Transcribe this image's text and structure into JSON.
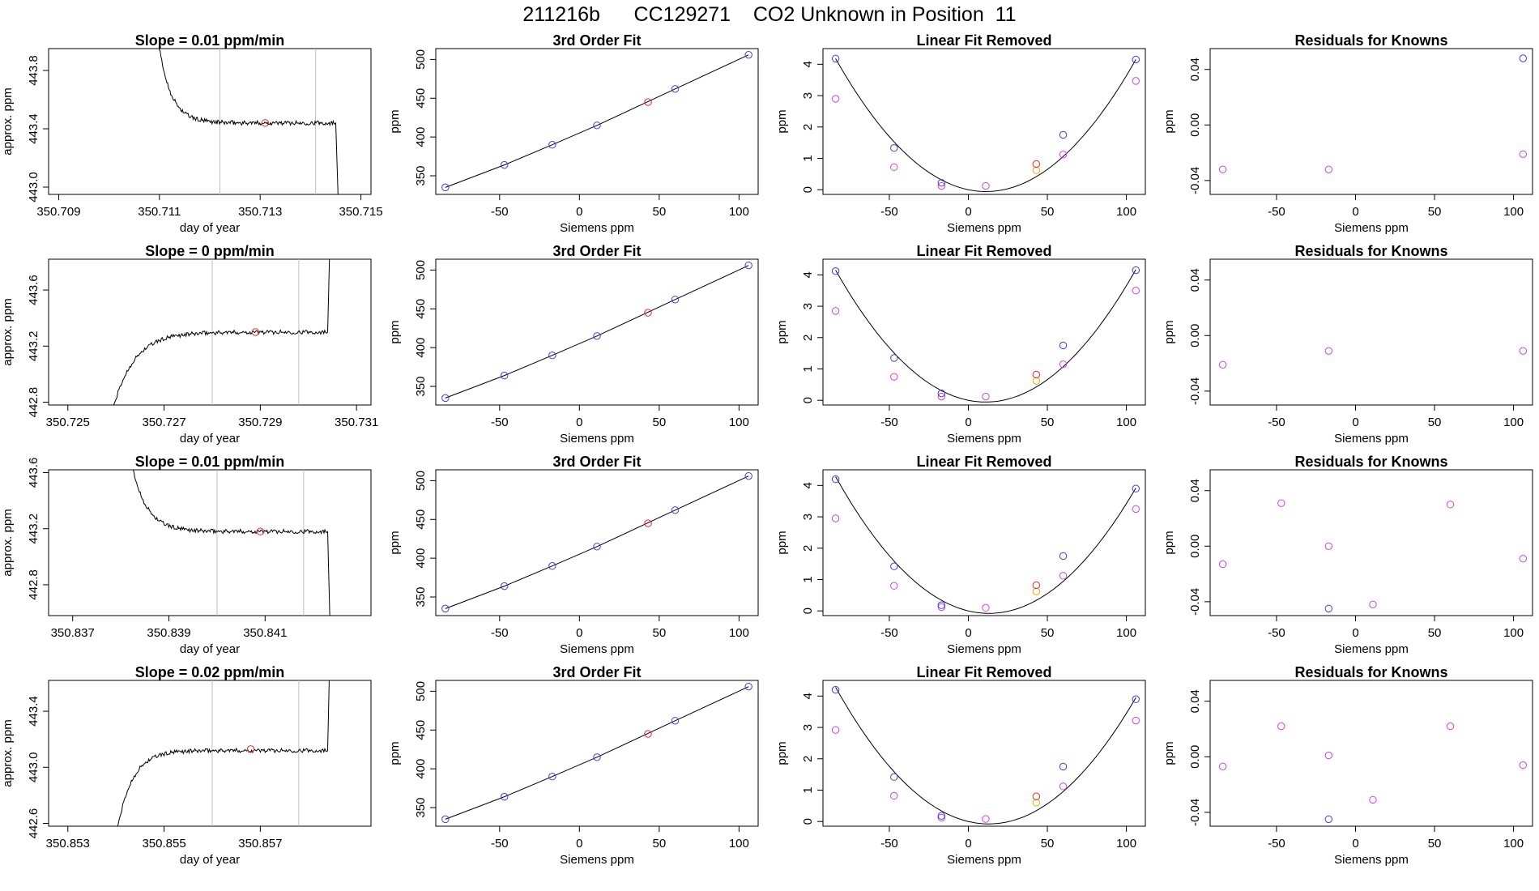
{
  "page_title": "211216b      CC129271    CO2 Unknown in Position  11",
  "colors": {
    "line": "#000000",
    "grid": "#bebebe",
    "red": "#e8292b",
    "blue": "#3a3af0",
    "magenta": "#d23ee8",
    "orange": "#ffa500"
  },
  "labels": {
    "slope_ylabel": "approx. ppm",
    "slope_xlabel": "day of year",
    "fit_title": "3rd Order Fit",
    "fit_ylabel": "ppm",
    "fit_xlabel": "Siemens ppm",
    "lin_title": "Linear Fit Removed",
    "lin_ylabel": "ppm",
    "lin_xlabel": "Siemens ppm",
    "res_title": "Residuals for Knowns",
    "res_ylabel": "ppm",
    "res_xlabel": "Siemens ppm"
  },
  "chart_data": [
    {
      "row": 1,
      "slope": {
        "type": "line",
        "title": "Slope =  0.01  ppm/min",
        "xlim": [
          350.7088,
          350.7152
        ],
        "ylim": [
          442.95,
          443.95
        ],
        "xticks": [
          350.709,
          350.711,
          350.713,
          350.715
        ],
        "yticks": [
          443.0,
          443.4,
          443.8
        ],
        "vlines": [
          350.7122,
          350.7141
        ],
        "shape": "decay_drop",
        "start_y": 444.2,
        "plateau_y": 443.44,
        "final_y": 442.9,
        "x_start": 350.7109,
        "x_settle": 350.7117,
        "x_end": 350.7145,
        "mean_point": [
          350.7131,
          443.44
        ]
      },
      "fit": {
        "type": "line",
        "title": "3rd Order Fit",
        "xlim": [
          -90,
          112
        ],
        "ylim": [
          326,
          514
        ],
        "xticks": [
          -50,
          0,
          50,
          100
        ],
        "yticks": [
          350,
          400,
          450,
          500
        ],
        "knowns": [
          [
            -84,
            335
          ],
          [
            -47,
            364
          ],
          [
            -17,
            390
          ],
          [
            11,
            415
          ],
          [
            60,
            462
          ],
          [
            106,
            506
          ]
        ],
        "unknown": [
          43,
          445
        ]
      },
      "linear": {
        "type": "scatter",
        "title": "Linear Fit Removed",
        "xlim": [
          -92,
          112
        ],
        "ylim": [
          -0.15,
          4.5
        ],
        "xticks": [
          -50,
          0,
          50,
          100
        ],
        "yticks": [
          0,
          1,
          2,
          3,
          4
        ],
        "curve": [
          [
            -84,
            4.18
          ],
          [
            106,
            4.15
          ]
        ],
        "blue": [
          [
            -84,
            4.18
          ],
          [
            -47,
            1.33
          ],
          [
            -17,
            0.22
          ],
          [
            60,
            1.75
          ],
          [
            106,
            4.15
          ]
        ],
        "magenta": [
          [
            -84,
            2.9
          ],
          [
            -47,
            0.72
          ],
          [
            -17,
            0.12
          ],
          [
            11,
            0.12
          ],
          [
            60,
            1.12
          ],
          [
            106,
            3.47
          ]
        ],
        "red": [
          [
            43,
            0.82
          ]
        ],
        "orange": [
          [
            43,
            0.62
          ]
        ]
      },
      "residuals": {
        "type": "scatter",
        "title": "Residuals for Knowns",
        "xlim": [
          -92,
          112
        ],
        "ylim": [
          -0.05,
          0.055
        ],
        "xticks": [
          -50,
          0,
          50,
          100
        ],
        "yticks": [
          -0.04,
          0.0,
          0.04
        ],
        "blue": [
          [
            106,
            0.048
          ]
        ],
        "magenta": [
          [
            -84,
            -0.032
          ],
          [
            -17,
            -0.032
          ],
          [
            106,
            -0.021
          ]
        ]
      }
    },
    {
      "row": 2,
      "slope": {
        "type": "line",
        "title": "Slope =  0  ppm/min",
        "xlim": [
          350.7246,
          350.7313
        ],
        "ylim": [
          442.78,
          443.82
        ],
        "xticks": [
          350.725,
          350.727,
          350.729,
          350.731
        ],
        "yticks": [
          442.8,
          443.2,
          443.6
        ],
        "vlines": [
          350.728,
          350.7298
        ],
        "shape": "rise_jump",
        "start_y": 442.7,
        "plateau_y": 443.3,
        "final_y": 444.0,
        "x_start": 350.7259,
        "x_settle": 350.7273,
        "x_end": 350.7304,
        "mean_point": [
          350.7289,
          443.3
        ]
      },
      "fit": {
        "type": "line",
        "title": "3rd Order Fit",
        "xlim": [
          -90,
          112
        ],
        "ylim": [
          326,
          514
        ],
        "xticks": [
          -50,
          0,
          50,
          100
        ],
        "yticks": [
          350,
          400,
          450,
          500
        ],
        "knowns": [
          [
            -84,
            335
          ],
          [
            -47,
            364
          ],
          [
            -17,
            390
          ],
          [
            11,
            415
          ],
          [
            60,
            462
          ],
          [
            106,
            506
          ]
        ],
        "unknown": [
          43,
          445
        ]
      },
      "linear": {
        "type": "scatter",
        "title": "Linear Fit Removed",
        "xlim": [
          -92,
          112
        ],
        "ylim": [
          -0.15,
          4.5
        ],
        "xticks": [
          -50,
          0,
          50,
          100
        ],
        "yticks": [
          0,
          1,
          2,
          3,
          4
        ],
        "curve": [
          [
            -84,
            4.15
          ],
          [
            106,
            4.17
          ]
        ],
        "blue": [
          [
            -84,
            4.12
          ],
          [
            -47,
            1.35
          ],
          [
            -17,
            0.22
          ],
          [
            60,
            1.75
          ],
          [
            106,
            4.15
          ]
        ],
        "magenta": [
          [
            -84,
            2.85
          ],
          [
            -47,
            0.75
          ],
          [
            -17,
            0.12
          ],
          [
            11,
            0.12
          ],
          [
            60,
            1.15
          ],
          [
            106,
            3.5
          ]
        ],
        "red": [
          [
            43,
            0.82
          ]
        ],
        "orange": [
          [
            43,
            0.62
          ]
        ]
      },
      "residuals": {
        "type": "scatter",
        "title": "Residuals for Knowns",
        "xlim": [
          -92,
          112
        ],
        "ylim": [
          -0.05,
          0.055
        ],
        "xticks": [
          -50,
          0,
          50,
          100
        ],
        "yticks": [
          -0.04,
          0.0,
          0.04
        ],
        "blue": [],
        "magenta": [
          [
            -84,
            -0.021
          ],
          [
            -17,
            -0.011
          ],
          [
            106,
            -0.011
          ]
        ]
      }
    },
    {
      "row": 3,
      "slope": {
        "type": "line",
        "title": "Slope =  0.01  ppm/min",
        "xlim": [
          350.8365,
          350.8432
        ],
        "ylim": [
          442.58,
          443.62
        ],
        "xticks": [
          350.837,
          350.839,
          350.841
        ],
        "yticks": [
          442.8,
          443.2,
          443.6
        ],
        "vlines": [
          350.84,
          350.8418
        ],
        "shape": "decay_drop",
        "start_y": 443.9,
        "plateau_y": 443.18,
        "final_y": 442.5,
        "x_start": 350.8381,
        "x_settle": 350.8391,
        "x_end": 350.8423,
        "mean_point": [
          350.8409,
          443.18
        ]
      },
      "fit": {
        "type": "line",
        "title": "3rd Order Fit",
        "xlim": [
          -90,
          112
        ],
        "ylim": [
          326,
          514
        ],
        "xticks": [
          -50,
          0,
          50,
          100
        ],
        "yticks": [
          350,
          400,
          450,
          500
        ],
        "knowns": [
          [
            -84,
            335
          ],
          [
            -47,
            364
          ],
          [
            -17,
            390
          ],
          [
            11,
            415
          ],
          [
            60,
            462
          ],
          [
            106,
            506
          ]
        ],
        "unknown": [
          43,
          445
        ]
      },
      "linear": {
        "type": "scatter",
        "title": "Linear Fit Removed",
        "xlim": [
          -92,
          112
        ],
        "ylim": [
          -0.15,
          4.5
        ],
        "xticks": [
          -50,
          0,
          50,
          100
        ],
        "yticks": [
          0,
          1,
          2,
          3,
          4
        ],
        "curve": [
          [
            -84,
            4.28
          ],
          [
            106,
            3.92
          ]
        ],
        "blue": [
          [
            -84,
            4.2
          ],
          [
            -47,
            1.42
          ],
          [
            -17,
            0.18
          ],
          [
            60,
            1.75
          ],
          [
            106,
            3.9
          ]
        ],
        "magenta": [
          [
            -84,
            2.95
          ],
          [
            -47,
            0.8
          ],
          [
            -17,
            0.12
          ],
          [
            11,
            0.1
          ],
          [
            60,
            1.12
          ],
          [
            106,
            3.25
          ]
        ],
        "red": [
          [
            43,
            0.82
          ]
        ],
        "orange": [
          [
            43,
            0.62
          ]
        ]
      },
      "residuals": {
        "type": "scatter",
        "title": "Residuals for Knowns",
        "xlim": [
          -92,
          112
        ],
        "ylim": [
          -0.05,
          0.055
        ],
        "xticks": [
          -50,
          0,
          50,
          100
        ],
        "yticks": [
          -0.04,
          0.0,
          0.04
        ],
        "blue": [
          [
            -17,
            -0.045
          ]
        ],
        "magenta": [
          [
            -84,
            -0.013
          ],
          [
            -47,
            0.031
          ],
          [
            -17,
            0.0
          ],
          [
            11,
            -0.042
          ],
          [
            60,
            0.03
          ],
          [
            106,
            -0.009
          ]
        ]
      }
    },
    {
      "row": 4,
      "slope": {
        "type": "line",
        "title": "Slope =  0.02  ppm/min",
        "xlim": [
          350.8526,
          350.8593
        ],
        "ylim": [
          442.58,
          443.62
        ],
        "xticks": [
          350.853,
          350.855,
          350.857
        ],
        "yticks": [
          442.6,
          443.0,
          443.4
        ],
        "vlines": [
          350.856,
          350.8578
        ],
        "shape": "rise_jump",
        "start_y": 442.5,
        "plateau_y": 443.12,
        "final_y": 443.9,
        "x_start": 350.854,
        "x_settle": 350.855,
        "x_end": 350.8584,
        "mean_point": [
          350.8568,
          443.13
        ]
      },
      "fit": {
        "type": "line",
        "title": "3rd Order Fit",
        "xlim": [
          -90,
          112
        ],
        "ylim": [
          326,
          514
        ],
        "xticks": [
          -50,
          0,
          50,
          100
        ],
        "yticks": [
          350,
          400,
          450,
          500
        ],
        "knowns": [
          [
            -84,
            335
          ],
          [
            -47,
            364
          ],
          [
            -17,
            390
          ],
          [
            11,
            415
          ],
          [
            60,
            462
          ],
          [
            106,
            506
          ]
        ],
        "unknown": [
          43,
          445
        ]
      },
      "linear": {
        "type": "scatter",
        "title": "Linear Fit Removed",
        "xlim": [
          -92,
          112
        ],
        "ylim": [
          -0.15,
          4.5
        ],
        "xticks": [
          -50,
          0,
          50,
          100
        ],
        "yticks": [
          0,
          1,
          2,
          3,
          4
        ],
        "curve": [
          [
            -84,
            4.28
          ],
          [
            106,
            3.95
          ]
        ],
        "blue": [
          [
            -84,
            4.2
          ],
          [
            -47,
            1.42
          ],
          [
            -17,
            0.18
          ],
          [
            60,
            1.75
          ],
          [
            106,
            3.9
          ]
        ],
        "magenta": [
          [
            -84,
            2.92
          ],
          [
            -47,
            0.82
          ],
          [
            -17,
            0.12
          ],
          [
            11,
            0.08
          ],
          [
            60,
            1.12
          ],
          [
            106,
            3.22
          ]
        ],
        "red": [
          [
            43,
            0.8
          ]
        ],
        "orange": [
          [
            43,
            0.6
          ]
        ]
      },
      "residuals": {
        "type": "scatter",
        "title": "Residuals for Knowns",
        "xlim": [
          -92,
          112
        ],
        "ylim": [
          -0.05,
          0.055
        ],
        "xticks": [
          -50,
          0,
          50,
          100
        ],
        "yticks": [
          -0.04,
          0.0,
          0.04
        ],
        "blue": [
          [
            -17,
            -0.045
          ]
        ],
        "magenta": [
          [
            -84,
            -0.007
          ],
          [
            -47,
            0.022
          ],
          [
            -17,
            0.001
          ],
          [
            11,
            -0.031
          ],
          [
            60,
            0.022
          ],
          [
            106,
            -0.006
          ]
        ]
      }
    }
  ]
}
